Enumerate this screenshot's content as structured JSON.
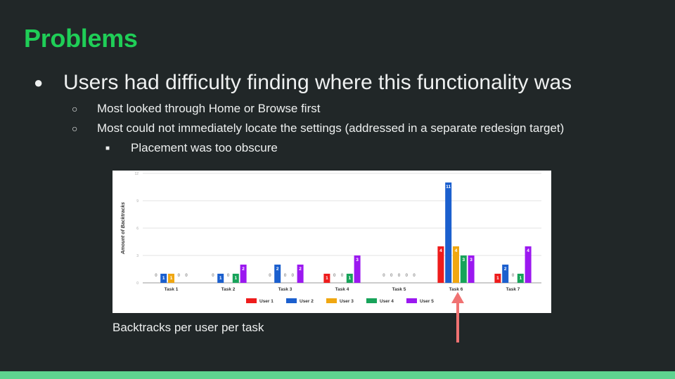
{
  "slide": {
    "title": "Problems",
    "bullets": {
      "main": "Users had difficulty finding where this functionality was",
      "sub1": "Most looked through Home or Browse first",
      "sub2": "Most could not immediately locate the settings (addressed in a separate redesign target)",
      "subsub1": "Placement was too obscure"
    },
    "markers": {
      "l1": "●",
      "l2": "○",
      "l3": "■"
    },
    "caption": "Backtracks per user per task",
    "colors": {
      "background": "#212728",
      "title": "#1fce57",
      "footer": "#5ed38f",
      "arrow": "#f07272"
    }
  },
  "chart_data": {
    "type": "bar",
    "ylabel": "Amount of Backtracks",
    "xlabel": "",
    "ylim": [
      0,
      12
    ],
    "yticks": [
      "0",
      "3",
      "6",
      "9",
      "12"
    ],
    "grid": true,
    "legend_position": "bottom",
    "categories": [
      "Task 1",
      "Task 2",
      "Task 3",
      "Task 4",
      "Task 5",
      "Task 6",
      "Task 7"
    ],
    "series": [
      {
        "name": "User 1",
        "color": "#ee1c1c",
        "values": [
          0,
          0,
          0,
          1,
          0,
          4,
          1
        ]
      },
      {
        "name": "User 2",
        "color": "#1b5fce",
        "values": [
          1,
          1,
          2,
          0,
          0,
          11,
          2
        ]
      },
      {
        "name": "User 3",
        "color": "#f0a711",
        "values": [
          1,
          0,
          0,
          0,
          0,
          4,
          0
        ]
      },
      {
        "name": "User 4",
        "color": "#18a35a",
        "values": [
          0,
          1,
          0,
          1,
          0,
          3,
          1
        ]
      },
      {
        "name": "User 5",
        "color": "#9b18f0",
        "values": [
          0,
          2,
          2,
          3,
          0,
          3,
          4
        ]
      }
    ],
    "annotation": {
      "type": "arrow",
      "points_to": "Task 6"
    }
  }
}
